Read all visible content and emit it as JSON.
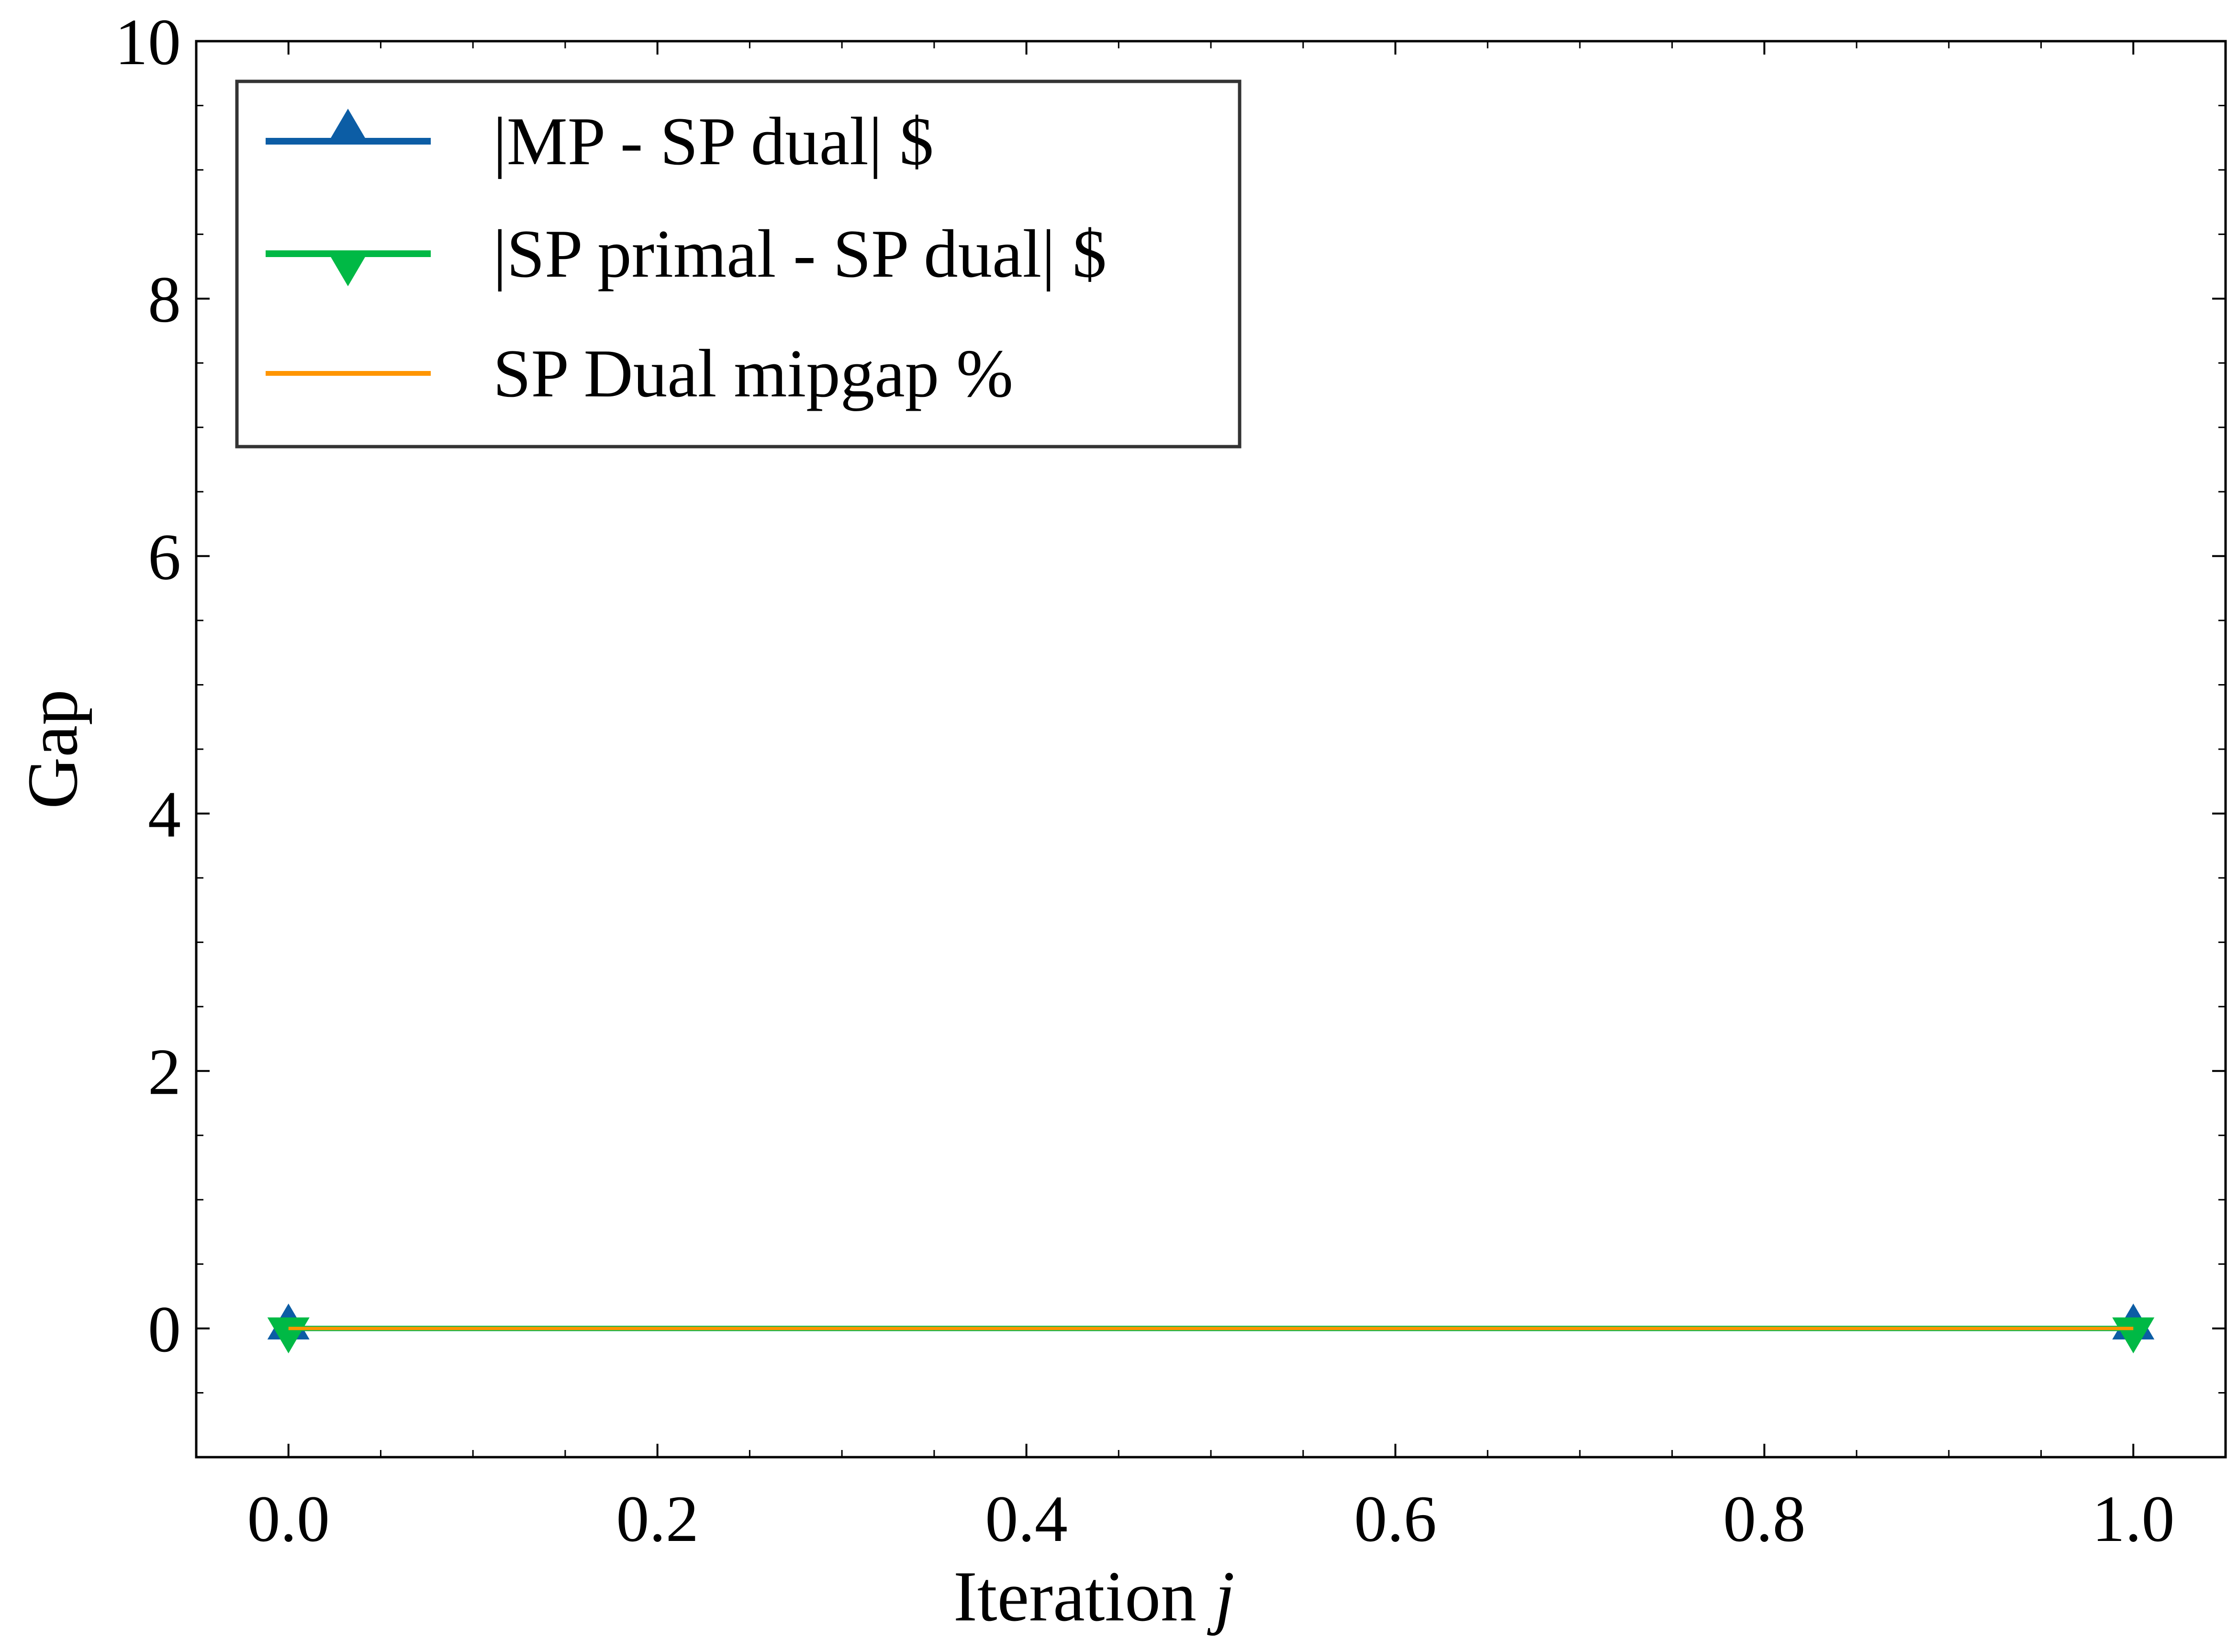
{
  "chart_data": {
    "type": "line",
    "xlabel": "Iteration",
    "xlabel_var": "j",
    "ylabel": "Gap",
    "xlim": [
      -0.05,
      1.05
    ],
    "ylim": [
      -1,
      10
    ],
    "x_ticks": [
      0.0,
      0.2,
      0.4,
      0.6,
      0.8,
      1.0
    ],
    "x_tick_labels": [
      "0.0",
      "0.2",
      "0.4",
      "0.6",
      "0.8",
      "1.0"
    ],
    "y_ticks": [
      0,
      2,
      4,
      6,
      8,
      10
    ],
    "y_tick_labels": [
      "0",
      "2",
      "4",
      "6",
      "8",
      "10"
    ],
    "grid": false,
    "legend_position": "upper-left",
    "series": [
      {
        "name": "|MP - SP dual| $",
        "x": [
          0,
          1
        ],
        "y": [
          0,
          0
        ],
        "color": "#0C5DA5",
        "marker": "triangle-up"
      },
      {
        "name": "|SP primal - SP dual| $",
        "x": [
          0,
          1
        ],
        "y": [
          0,
          0
        ],
        "color": "#00B945",
        "marker": "triangle-down"
      },
      {
        "name": "SP Dual mipgap %",
        "x": [
          0,
          1
        ],
        "y": [
          0,
          0
        ],
        "color": "#FF9500",
        "marker": "none"
      }
    ]
  }
}
